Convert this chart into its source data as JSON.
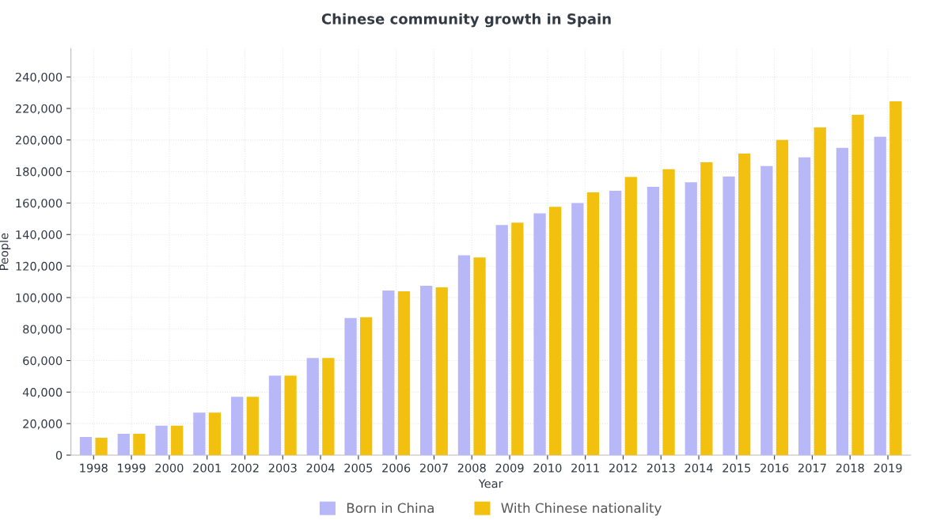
{
  "chart_data": {
    "type": "bar",
    "title": "Chinese community growth in Spain",
    "xlabel": "Year",
    "ylabel": "People",
    "categories": [
      "1998",
      "1999",
      "2000",
      "2001",
      "2002",
      "2003",
      "2004",
      "2005",
      "2006",
      "2007",
      "2008",
      "2009",
      "2010",
      "2011",
      "2012",
      "2013",
      "2014",
      "2015",
      "2016",
      "2017",
      "2018",
      "2019"
    ],
    "series": [
      {
        "name": "Born in China",
        "color": "#b8b8f8",
        "values": [
          11500,
          13500,
          18700,
          27000,
          37000,
          50500,
          61600,
          87000,
          104500,
          107500,
          126800,
          146000,
          153500,
          160000,
          167700,
          170300,
          173200,
          176800,
          183400,
          189000,
          195000,
          202000
        ]
      },
      {
        "name": "With Chinese nationality",
        "color": "#f2c10f",
        "values": [
          11000,
          13500,
          18700,
          27000,
          37000,
          50500,
          61600,
          87500,
          104000,
          106500,
          125500,
          147500,
          157600,
          166700,
          176500,
          181500,
          185800,
          191400,
          200000,
          208000,
          216000,
          224500
        ]
      }
    ],
    "ylim": [
      0,
      258000
    ],
    "yticks": [
      {
        "value": 0,
        "label": "0"
      },
      {
        "value": 20000,
        "label": "20,000"
      },
      {
        "value": 40000,
        "label": "40,000"
      },
      {
        "value": 60000,
        "label": "60,000"
      },
      {
        "value": 80000,
        "label": "80,000"
      },
      {
        "value": 100000,
        "label": "100,000"
      },
      {
        "value": 120000,
        "label": "120,000"
      },
      {
        "value": 140000,
        "label": "140,000"
      },
      {
        "value": 160000,
        "label": "160,000"
      },
      {
        "value": 180000,
        "label": "180,000"
      },
      {
        "value": 200000,
        "label": "200,000"
      },
      {
        "value": 220000,
        "label": "220,000"
      },
      {
        "value": 240000,
        "label": "240,000"
      }
    ],
    "grid": true,
    "legend": "bottom"
  }
}
